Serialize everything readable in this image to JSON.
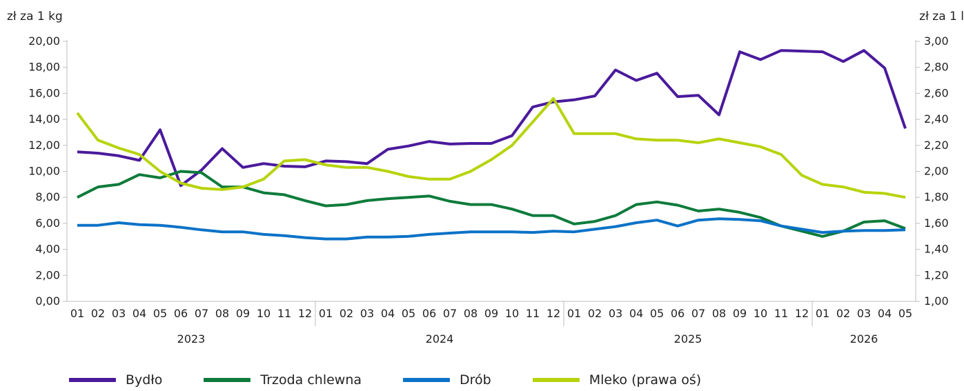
{
  "chart_data": {
    "type": "line",
    "y_left_label": "zł za 1 kg",
    "y_right_label": "zł za 1 l",
    "ylim_left": [
      0,
      20
    ],
    "ylim_right": [
      1.0,
      3.0
    ],
    "y_left_ticks": [
      "0,00",
      "2,00",
      "4,00",
      "6,00",
      "8,00",
      "10,00",
      "12,00",
      "14,00",
      "16,00",
      "18,00",
      "20,00"
    ],
    "y_right_ticks": [
      "1,00",
      "1,20",
      "1,40",
      "1,60",
      "1,80",
      "2,00",
      "2,20",
      "2,40",
      "2,60",
      "2,80",
      "3,00"
    ],
    "x_months": [
      "01",
      "02",
      "03",
      "04",
      "05",
      "06",
      "07",
      "08",
      "09",
      "10",
      "11",
      "12",
      "01",
      "02",
      "03",
      "04",
      "05",
      "06",
      "07",
      "08",
      "09",
      "10",
      "11",
      "12",
      "01",
      "02",
      "03",
      "04",
      "05",
      "06",
      "07",
      "08",
      "09",
      "10",
      "11",
      "12",
      "01",
      "02",
      "03",
      "04",
      "05"
    ],
    "year_groups": [
      {
        "label": "2023",
        "count": 12
      },
      {
        "label": "2024",
        "count": 12
      },
      {
        "label": "2025",
        "count": 12
      },
      {
        "label": "2026",
        "count": 5
      }
    ],
    "grid": false,
    "legend_position": "bottom",
    "series": [
      {
        "name": "Bydło",
        "axis": "left",
        "color": "#4a1a9c",
        "values": [
          11.5,
          11.4,
          11.2,
          10.85,
          13.2,
          8.9,
          10.1,
          11.75,
          10.3,
          10.6,
          10.4,
          10.35,
          10.8,
          10.75,
          10.6,
          11.7,
          11.95,
          12.3,
          12.1,
          12.15,
          12.15,
          12.75,
          14.95,
          15.35,
          15.5,
          15.8,
          17.8,
          17.0,
          17.55,
          15.75,
          15.85,
          14.35,
          19.2,
          18.6,
          19.3,
          19.25,
          19.2,
          18.45,
          19.3,
          17.95,
          13.3
        ]
      },
      {
        "name": "Trzoda chlewna",
        "axis": "left",
        "color": "#0e7b3b",
        "values": [
          8.0,
          8.8,
          9.0,
          9.75,
          9.5,
          10.0,
          9.9,
          8.8,
          8.8,
          8.35,
          8.2,
          7.75,
          7.35,
          7.45,
          7.75,
          7.9,
          8.0,
          8.1,
          7.7,
          7.45,
          7.45,
          7.1,
          6.6,
          6.6,
          5.95,
          6.15,
          6.6,
          7.45,
          7.65,
          7.4,
          6.95,
          7.1,
          6.85,
          6.45,
          5.8,
          5.4,
          5.0,
          5.4,
          6.1,
          6.2,
          5.6
        ]
      },
      {
        "name": "Drób",
        "axis": "left",
        "color": "#0b72c7",
        "values": [
          5.85,
          5.85,
          6.05,
          5.9,
          5.85,
          5.7,
          5.5,
          5.35,
          5.35,
          5.15,
          5.05,
          4.9,
          4.8,
          4.8,
          4.95,
          4.95,
          5.0,
          5.15,
          5.25,
          5.35,
          5.35,
          5.35,
          5.3,
          5.4,
          5.35,
          5.55,
          5.75,
          6.05,
          6.25,
          5.8,
          6.25,
          6.35,
          6.3,
          6.2,
          5.8,
          5.55,
          5.3,
          5.4,
          5.45,
          5.45,
          5.5
        ]
      },
      {
        "name": "Mleko (prawa oś)",
        "axis": "right",
        "color": "#b7d30d",
        "values": [
          2.45,
          2.24,
          2.18,
          2.13,
          2.0,
          1.91,
          1.87,
          1.86,
          1.88,
          1.94,
          2.08,
          2.09,
          2.05,
          2.03,
          2.03,
          2.0,
          1.96,
          1.94,
          1.94,
          2.0,
          2.09,
          2.2,
          2.38,
          2.56,
          2.29,
          2.29,
          2.29,
          2.25,
          2.24,
          2.24,
          2.22,
          2.25,
          2.22,
          2.19,
          2.13,
          1.97,
          1.9,
          1.88,
          1.84,
          1.83,
          1.8
        ]
      }
    ]
  }
}
